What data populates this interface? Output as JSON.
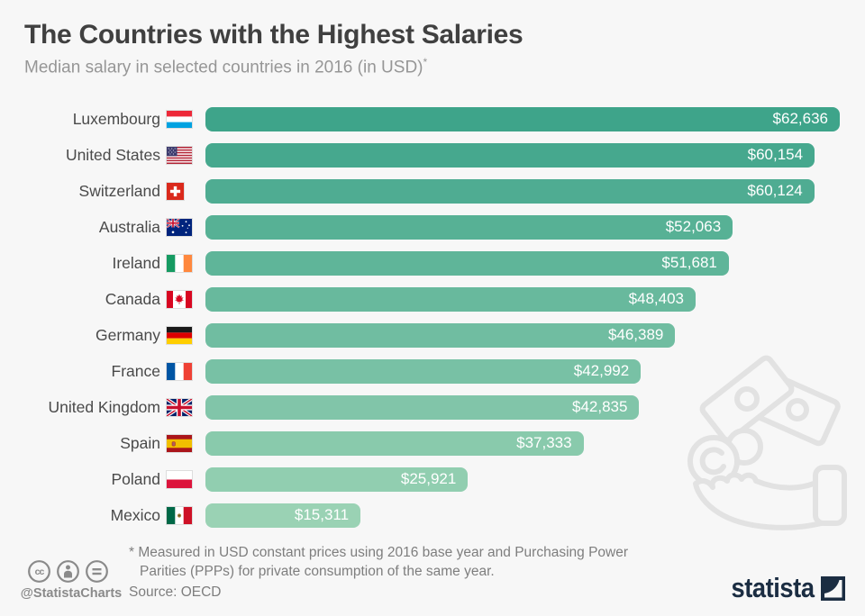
{
  "header": {
    "title": "The Countries with the Highest Salaries",
    "subtitle": "Median salary in selected countries in 2016 (in USD)",
    "footnote_marker": "*"
  },
  "chart_data": {
    "type": "bar",
    "orientation": "horizontal",
    "title": "The Countries with the Highest Salaries",
    "subtitle": "Median salary in selected countries in 2016 (in USD)*",
    "unit": "USD",
    "xlim": [
      0,
      62636
    ],
    "grid": false,
    "legend": false,
    "categories": [
      "Luxembourg",
      "United States",
      "Switzerland",
      "Australia",
      "Ireland",
      "Canada",
      "Germany",
      "France",
      "United Kingdom",
      "Spain",
      "Poland",
      "Mexico"
    ],
    "values": [
      62636,
      60154,
      60124,
      52063,
      51681,
      48403,
      46389,
      42992,
      42835,
      37333,
      25921,
      15311
    ],
    "display_values": [
      "$62,636",
      "$60,154",
      "$60,124",
      "$52,063",
      "$51,681",
      "$48,403",
      "$46,389",
      "$42,992",
      "$42,835",
      "$37,333",
      "$25,921",
      "$15,311"
    ],
    "flags": [
      "flag-luxembourg",
      "flag-united-states",
      "flag-switzerland",
      "flag-australia",
      "flag-ireland",
      "flag-canada",
      "flag-germany",
      "flag-france",
      "flag-united-kingdom",
      "flag-spain",
      "flag-poland",
      "flag-mexico"
    ],
    "bar_colors": [
      "#3EA48A",
      "#46A88E",
      "#4FAC92",
      "#57B195",
      "#5FB599",
      "#68B99D",
      "#70BDA1",
      "#78C1A5",
      "#81C5A9",
      "#89CAAC",
      "#91CEB0",
      "#9AD2B4"
    ],
    "value_label_color": "#ffffff"
  },
  "footer": {
    "license_icons": [
      "cc-icon",
      "attribution-person-icon",
      "equals-icon"
    ],
    "handle": "@StatistaCharts",
    "footnote_line1": "* Measured in USD constant prices using 2016 base year and Purchasing Power",
    "footnote_line2": "Parities (PPPs) for private consumption of the same year.",
    "source": "Source: OECD",
    "brand_name": "statista"
  },
  "colors": {
    "background": "#F7F7F7",
    "title_text": "#404040",
    "subtitle_text": "#969696",
    "label_text": "#4A4A4A",
    "footer_text": "#7E7E7E",
    "brand_navy": "#1B2D42",
    "watermark": "#E2E2E2"
  }
}
